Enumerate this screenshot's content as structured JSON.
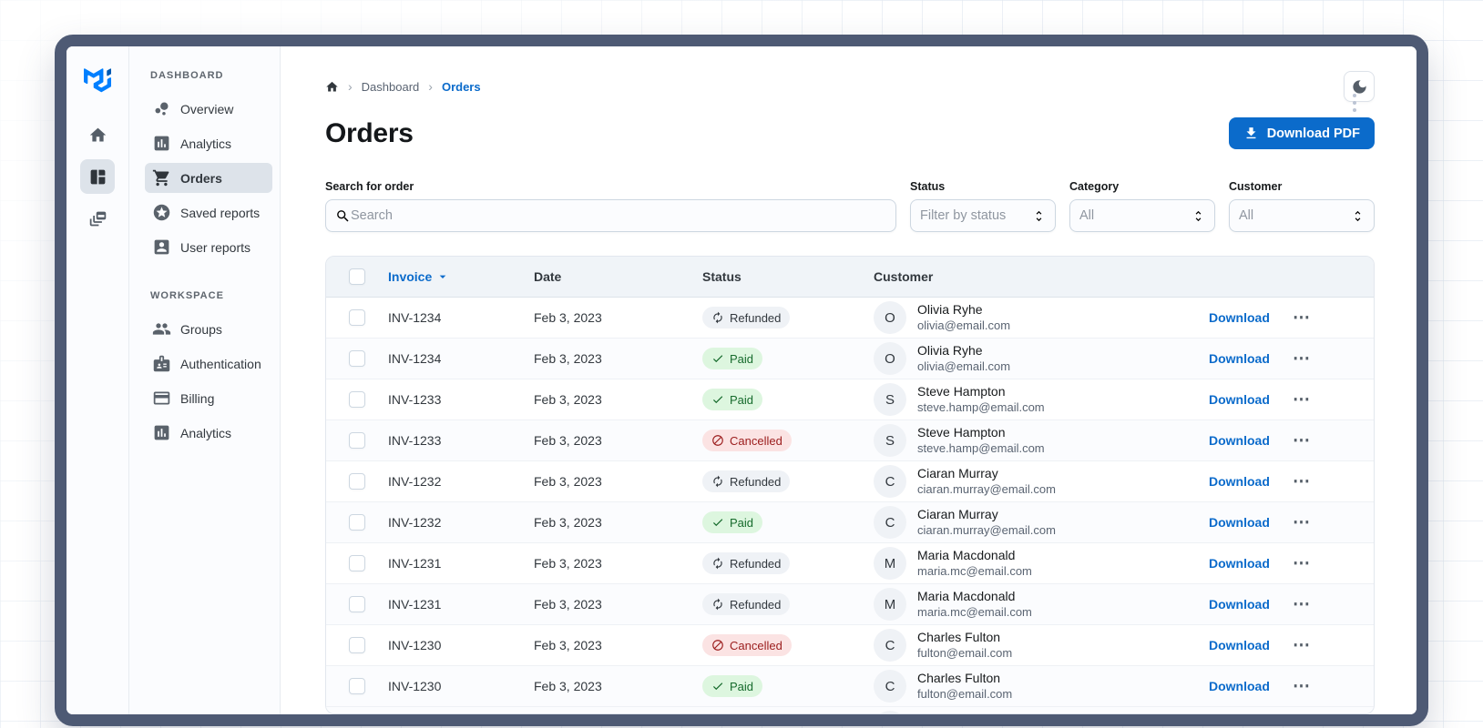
{
  "colors": {
    "primary": "#0b6bcb",
    "frame": "#4e5a74",
    "sidebar_bg": "#fbfcfe",
    "selected_bg": "#dde3ea",
    "table_header_bg": "#f0f4f8",
    "chip_neutral_bg": "#eff2f6",
    "chip_success_bg": "#ddf6df",
    "chip_success_text": "#166b2c",
    "chip_danger_bg": "#fbe3e3",
    "chip_danger_text": "#9b1c1c",
    "brand_blue": "#007FFF"
  },
  "rail": {
    "items": [
      {
        "icon": "home",
        "selected": false
      },
      {
        "icon": "dashboard",
        "selected": true
      },
      {
        "icon": "layers",
        "selected": false
      }
    ]
  },
  "sidebar": {
    "sections": [
      {
        "label": "DASHBOARD",
        "items": [
          {
            "icon": "bubble-chart",
            "label": "Overview",
            "selected": false
          },
          {
            "icon": "bar-chart",
            "label": "Analytics",
            "selected": false
          },
          {
            "icon": "shopping-cart",
            "label": "Orders",
            "selected": true
          },
          {
            "icon": "star-circle",
            "label": "Saved reports",
            "selected": false
          },
          {
            "icon": "person-card",
            "label": "User reports",
            "selected": false
          }
        ]
      },
      {
        "label": "WORKSPACE",
        "items": [
          {
            "icon": "groups",
            "label": "Groups",
            "selected": false
          },
          {
            "icon": "badge",
            "label": "Authentication",
            "selected": false
          },
          {
            "icon": "credit-card",
            "label": "Billing",
            "selected": false
          },
          {
            "icon": "bar-chart",
            "label": "Analytics",
            "selected": false
          }
        ]
      }
    ]
  },
  "header": {
    "breadcrumb": {
      "home_icon": "home",
      "items": [
        "Dashboard",
        "Orders"
      ]
    },
    "theme_toggle_icon": "moon",
    "title": "Orders",
    "download_button": {
      "label": "Download PDF",
      "icon": "download"
    }
  },
  "filters": {
    "search": {
      "label": "Search for order",
      "placeholder": "Search",
      "value": "",
      "icon": "search"
    },
    "status": {
      "label": "Status",
      "value": "Filter by status"
    },
    "category": {
      "label": "Category",
      "value": "All"
    },
    "customer": {
      "label": "Customer",
      "value": "All"
    }
  },
  "table": {
    "columns": {
      "invoice": "Invoice",
      "date": "Date",
      "status": "Status",
      "customer": "Customer"
    },
    "sorted_by": "Invoice",
    "download_label": "Download",
    "menu_glyph": "⋯",
    "rows": [
      {
        "invoice": "INV-1234",
        "date": "Feb 3, 2023",
        "status": "Refunded",
        "status_variant": "neutral",
        "initial": "O",
        "name": "Olivia Ryhe",
        "email": "olivia@email.com"
      },
      {
        "invoice": "INV-1234",
        "date": "Feb 3, 2023",
        "status": "Paid",
        "status_variant": "success",
        "initial": "O",
        "name": "Olivia Ryhe",
        "email": "olivia@email.com"
      },
      {
        "invoice": "INV-1233",
        "date": "Feb 3, 2023",
        "status": "Paid",
        "status_variant": "success",
        "initial": "S",
        "name": "Steve Hampton",
        "email": "steve.hamp@email.com"
      },
      {
        "invoice": "INV-1233",
        "date": "Feb 3, 2023",
        "status": "Cancelled",
        "status_variant": "danger",
        "initial": "S",
        "name": "Steve Hampton",
        "email": "steve.hamp@email.com"
      },
      {
        "invoice": "INV-1232",
        "date": "Feb 3, 2023",
        "status": "Refunded",
        "status_variant": "neutral",
        "initial": "C",
        "name": "Ciaran Murray",
        "email": "ciaran.murray@email.com"
      },
      {
        "invoice": "INV-1232",
        "date": "Feb 3, 2023",
        "status": "Paid",
        "status_variant": "success",
        "initial": "C",
        "name": "Ciaran Murray",
        "email": "ciaran.murray@email.com"
      },
      {
        "invoice": "INV-1231",
        "date": "Feb 3, 2023",
        "status": "Refunded",
        "status_variant": "neutral",
        "initial": "M",
        "name": "Maria Macdonald",
        "email": "maria.mc@email.com"
      },
      {
        "invoice": "INV-1231",
        "date": "Feb 3, 2023",
        "status": "Refunded",
        "status_variant": "neutral",
        "initial": "M",
        "name": "Maria Macdonald",
        "email": "maria.mc@email.com"
      },
      {
        "invoice": "INV-1230",
        "date": "Feb 3, 2023",
        "status": "Cancelled",
        "status_variant": "danger",
        "initial": "C",
        "name": "Charles Fulton",
        "email": "fulton@email.com"
      },
      {
        "invoice": "INV-1230",
        "date": "Feb 3, 2023",
        "status": "Paid",
        "status_variant": "success",
        "initial": "C",
        "name": "Charles Fulton",
        "email": "fulton@email.com"
      }
    ],
    "partial_row_visible": true
  }
}
